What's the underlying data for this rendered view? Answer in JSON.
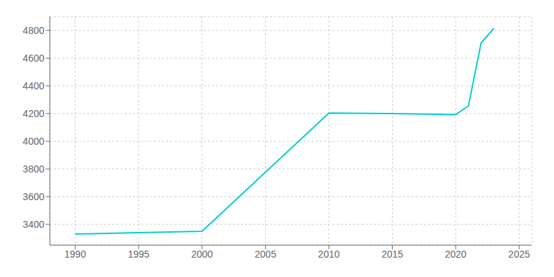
{
  "chart_data": {
    "type": "line",
    "x": [
      1990,
      2000,
      2010,
      2015,
      2020,
      2021,
      2022,
      2023
    ],
    "values": [
      3330,
      3350,
      4204,
      4200,
      4192,
      4255,
      4710,
      4815
    ],
    "color": "#00CED1",
    "xlim": [
      1988,
      2026
    ],
    "ylim": [
      3250,
      4900
    ],
    "xticks": [
      1990,
      1995,
      2000,
      2005,
      2010,
      2015,
      2020,
      2025
    ],
    "yticks": [
      3400,
      3600,
      3800,
      4000,
      4200,
      4400,
      4600,
      4800
    ],
    "grid": true
  }
}
